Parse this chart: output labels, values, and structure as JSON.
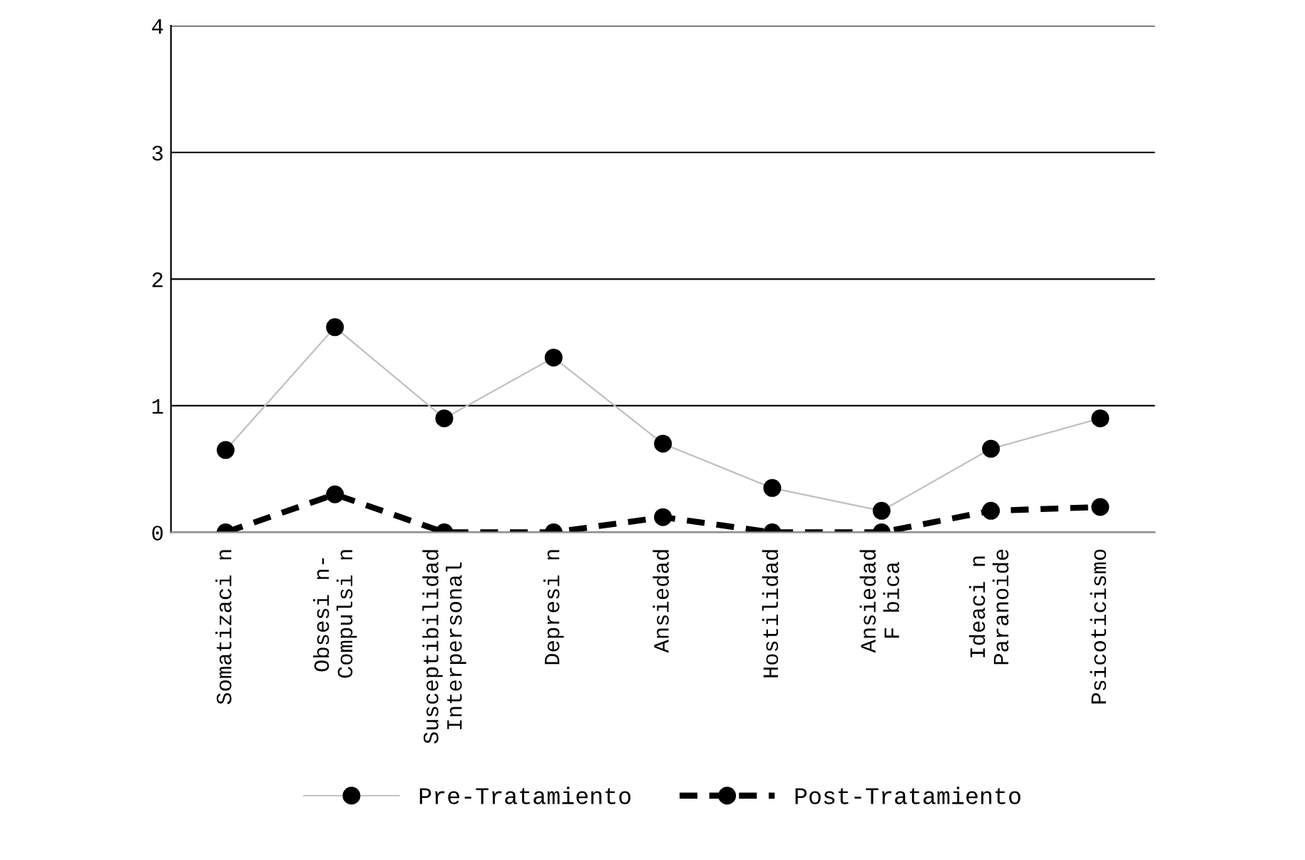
{
  "chart_data": {
    "type": "line",
    "categories": [
      "Somatizaci n",
      "Obsesi n-\nCompulsi n",
      "Susceptibilidad\nInterpersonal",
      "Depresi n",
      "Ansiedad",
      "Hostilidad",
      "Ansiedad\nF bica",
      "Ideaci n\nParanoide",
      "Psicoticismo"
    ],
    "series": [
      {
        "name": "Pre-Tratamiento",
        "color": "#c0c0c0",
        "line_style": "solid",
        "values": [
          0.65,
          1.62,
          0.9,
          1.38,
          0.7,
          0.35,
          0.17,
          0.66,
          0.9
        ]
      },
      {
        "name": "Post-Tratamiento",
        "color": "#000000",
        "line_style": "dashed",
        "values": [
          0.0,
          0.3,
          0.0,
          0.0,
          0.12,
          0.0,
          0.0,
          0.17,
          0.2
        ]
      }
    ],
    "marker": "circle",
    "ylim": [
      0,
      4
    ],
    "yticks": [
      0,
      1,
      2,
      3,
      4
    ],
    "grid": "y",
    "legend": "bottom"
  }
}
